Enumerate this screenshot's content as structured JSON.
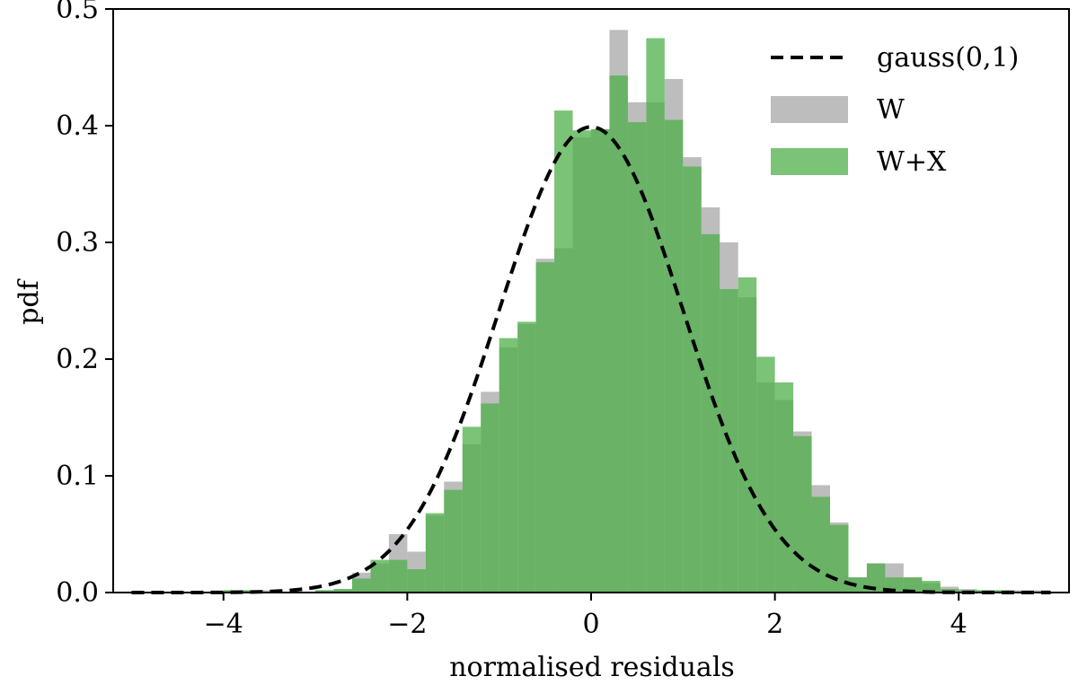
{
  "chart_data": {
    "type": "bar",
    "subtype": "overlaid-histogram",
    "title": "",
    "xlabel": "normalised residuals",
    "ylabel": "pdf",
    "xlim": [
      -5.2,
      5.2
    ],
    "ylim": [
      0,
      0.5
    ],
    "xticks": [
      -4,
      -2,
      0,
      2,
      4
    ],
    "xtick_labels": [
      "−4",
      "−2",
      "0",
      "2",
      "4"
    ],
    "yticks": [
      0.0,
      0.1,
      0.2,
      0.3,
      0.4,
      0.5
    ],
    "ytick_labels": [
      "0.0",
      "0.1",
      "0.2",
      "0.3",
      "0.4",
      "0.5"
    ],
    "grid": false,
    "legend_position": "top-right",
    "bin_width": 0.2,
    "bin_start": -5.0,
    "series": [
      {
        "name": "W",
        "kind": "histogram",
        "color": "#bdbdbd",
        "values": [
          0,
          0,
          0,
          0,
          0,
          0.002,
          0.002,
          0.002,
          0,
          0,
          0.002,
          0.003,
          0.017,
          0.025,
          0.05,
          0.035,
          0.066,
          0.095,
          0.127,
          0.172,
          0.21,
          0.23,
          0.286,
          0.295,
          0.39,
          0.397,
          0.482,
          0.42,
          0.42,
          0.44,
          0.373,
          0.33,
          0.3,
          0.253,
          0.18,
          0.165,
          0.138,
          0.092,
          0.06,
          0.013,
          0.025,
          0.025,
          0.013,
          0.008,
          0.005,
          0.003,
          0.002,
          0.002,
          0.002,
          0.002
        ]
      },
      {
        "name": "W+X",
        "kind": "histogram",
        "color": "#4daf4a",
        "values": [
          0,
          0,
          0,
          0,
          0,
          0.002,
          0.002,
          0,
          0,
          0,
          0.002,
          0.003,
          0.012,
          0.028,
          0.028,
          0.02,
          0.068,
          0.088,
          0.142,
          0.162,
          0.218,
          0.232,
          0.283,
          0.413,
          0.396,
          0.397,
          0.443,
          0.403,
          0.475,
          0.405,
          0.365,
          0.307,
          0.26,
          0.27,
          0.202,
          0.18,
          0.134,
          0.082,
          0.058,
          0.013,
          0.025,
          0.013,
          0.013,
          0.01,
          0.003,
          0.002,
          0.002,
          0.002,
          0,
          0
        ]
      },
      {
        "name": "gauss(0,1)",
        "kind": "line",
        "style": "dashed",
        "color": "#000000",
        "function": "standard-normal-pdf",
        "x": [
          -5.0,
          -4.5,
          -4.0,
          -3.5,
          -3.0,
          -2.75,
          -2.5,
          -2.25,
          -2.0,
          -1.75,
          -1.5,
          -1.25,
          -1.0,
          -0.75,
          -0.5,
          -0.25,
          0.0,
          0.25,
          0.5,
          0.75,
          1.0,
          1.25,
          1.5,
          1.75,
          2.0,
          2.25,
          2.5,
          2.75,
          3.0,
          3.5,
          4.0,
          4.5,
          5.0
        ],
        "y": [
          1.5e-06,
          1.6e-05,
          0.000134,
          0.000873,
          0.004432,
          0.009094,
          0.017528,
          0.03174,
          0.053991,
          0.086277,
          0.129518,
          0.182649,
          0.241971,
          0.301137,
          0.352065,
          0.386668,
          0.398942,
          0.386668,
          0.352065,
          0.301137,
          0.241971,
          0.182649,
          0.129518,
          0.086277,
          0.053991,
          0.03174,
          0.017528,
          0.009094,
          0.004432,
          0.000873,
          0.000134,
          1.6e-05,
          1.5e-06
        ]
      }
    ],
    "legend": [
      {
        "label": "gauss(0,1)",
        "marker": "dashed-line",
        "color": "#000000"
      },
      {
        "label": "W",
        "marker": "patch",
        "color": "#bdbdbd"
      },
      {
        "label": "W+X",
        "marker": "patch",
        "color": "#4daf4a"
      }
    ]
  }
}
